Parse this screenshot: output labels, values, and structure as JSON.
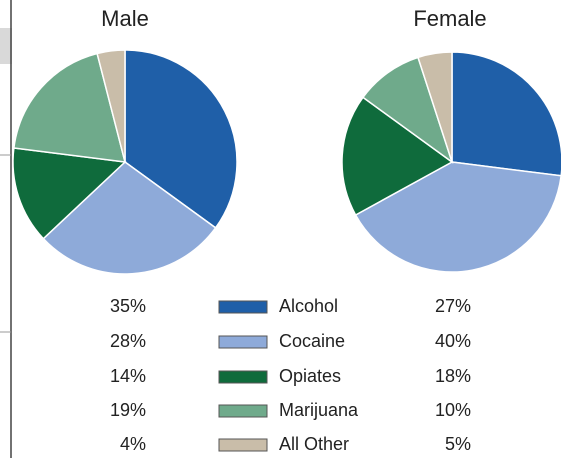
{
  "chart_data": [
    {
      "type": "pie",
      "title": "Male",
      "values": [
        35,
        28,
        14,
        19,
        4
      ],
      "value_labels": [
        "35%",
        "28%",
        "14%",
        "19%",
        "4%"
      ]
    },
    {
      "type": "pie",
      "title": "Female",
      "values": [
        27,
        40,
        18,
        10,
        5
      ],
      "value_labels": [
        "27%",
        "40%",
        "18%",
        "10%",
        "5%"
      ]
    }
  ],
  "legend": {
    "categories": [
      "Alcohol",
      "Cocaine",
      "Opiates",
      "Marijuana",
      "All Other"
    ],
    "colors": [
      "#1f5fa8",
      "#8eaad9",
      "#0f6b3c",
      "#6faa8b",
      "#c9bda9"
    ]
  }
}
